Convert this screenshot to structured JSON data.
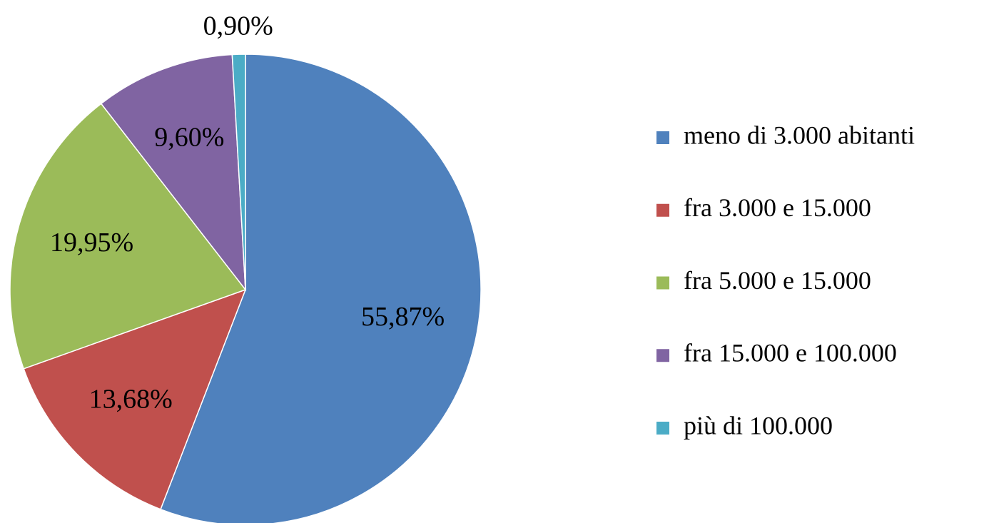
{
  "chart_data": {
    "type": "pie",
    "categories": [
      "meno di 3.000 abitanti",
      "fra 3.000 e 15.000",
      "fra 5.000 e 15.000",
      "fra 15.000 e 100.000",
      "più di 100.000"
    ],
    "values": [
      55.87,
      13.68,
      19.95,
      9.6,
      0.9
    ],
    "value_labels": [
      "55,87%",
      "13,68%",
      "19,95%",
      "9,60%",
      "0,90%"
    ],
    "colors": [
      "#4f81bd",
      "#c0504d",
      "#9bbb59",
      "#8064a2",
      "#4bacc6"
    ],
    "legend": "right"
  }
}
